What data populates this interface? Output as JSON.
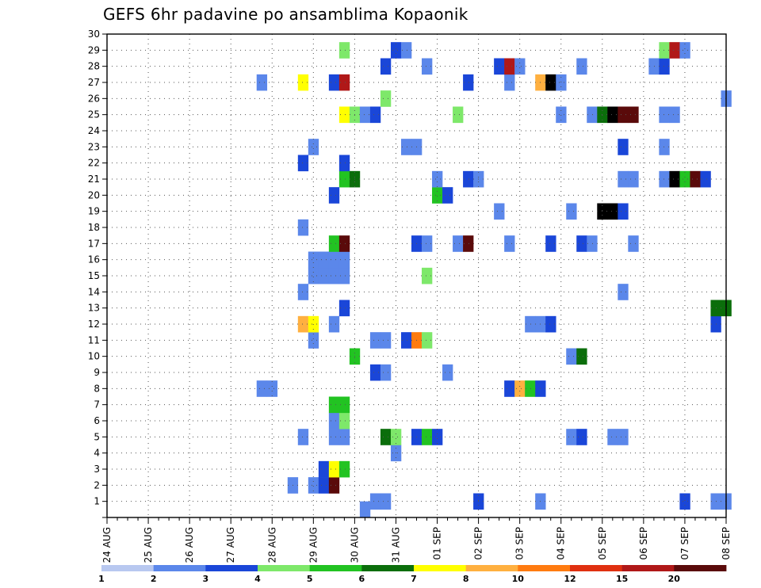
{
  "chart_data": {
    "type": "heatmap",
    "title": "GEFS 6hr padavine po ansamblima Kopaonik",
    "x_tick_labels": [
      "24 AUG",
      "25 AUG",
      "26 AUG",
      "27 AUG",
      "28 AUG",
      "29 AUG",
      "30 AUG",
      "31 AUG",
      "01 SEP",
      "02 SEP",
      "03 SEP",
      "04 SEP",
      "05 SEP",
      "06 SEP",
      "07 SEP",
      "08 SEP"
    ],
    "y_tick_labels": [
      "1",
      "2",
      "3",
      "4",
      "5",
      "6",
      "7",
      "8",
      "9",
      "10",
      "11",
      "12",
      "13",
      "14",
      "15",
      "16",
      "17",
      "18",
      "19",
      "20",
      "21",
      "22",
      "23",
      "24",
      "25",
      "26",
      "27",
      "28",
      "29",
      "30"
    ],
    "ylim": [
      0,
      30
    ],
    "x_range_steps": [
      0,
      60
    ],
    "grid": true,
    "colorbar": {
      "levels": [
        "1",
        "2",
        "3",
        "4",
        "5",
        "6",
        "7",
        "8",
        "10",
        "12",
        "15",
        "20"
      ],
      "colors": [
        "#b8c8f0",
        "#5b87ea",
        "#1a46d8",
        "#7ee86a",
        "#22c322",
        "#0b6e0b",
        "#ffff00",
        "#ffb040",
        "#ff7b10",
        "#e03010",
        "#b01818",
        "#5a0a0a"
      ]
    },
    "cells": [
      [
        26,
        1,
        1
      ],
      [
        27,
        1,
        1
      ],
      [
        36,
        1,
        2
      ],
      [
        42,
        1,
        1
      ],
      [
        56,
        1,
        2
      ],
      [
        59,
        1,
        1
      ],
      [
        60,
        1,
        1
      ],
      [
        25,
        0.5,
        1
      ],
      [
        18,
        2,
        1
      ],
      [
        20,
        2,
        1
      ],
      [
        21,
        2,
        2
      ],
      [
        22,
        2,
        11
      ],
      [
        21,
        3,
        2
      ],
      [
        22,
        3,
        6
      ],
      [
        23,
        3,
        4
      ],
      [
        28,
        4,
        1
      ],
      [
        19,
        5,
        1
      ],
      [
        22,
        5,
        1
      ],
      [
        23,
        5,
        1
      ],
      [
        27,
        5,
        5
      ],
      [
        28,
        5,
        3
      ],
      [
        30,
        5,
        2
      ],
      [
        31,
        5,
        4
      ],
      [
        32,
        5,
        2
      ],
      [
        45,
        5,
        1
      ],
      [
        46,
        5,
        2
      ],
      [
        49,
        5,
        1
      ],
      [
        50,
        5,
        1
      ],
      [
        22,
        6,
        1
      ],
      [
        23,
        6,
        3
      ],
      [
        22,
        7,
        4
      ],
      [
        23,
        7,
        4
      ],
      [
        15,
        8,
        1
      ],
      [
        16,
        8,
        1
      ],
      [
        39,
        8,
        2
      ],
      [
        40,
        8,
        7
      ],
      [
        41,
        8,
        4
      ],
      [
        42,
        8,
        2
      ],
      [
        26,
        9,
        2
      ],
      [
        27,
        9,
        1
      ],
      [
        33,
        9,
        1
      ],
      [
        24,
        10,
        4
      ],
      [
        45,
        10,
        1
      ],
      [
        46,
        10,
        5
      ],
      [
        20,
        11,
        1
      ],
      [
        26,
        11,
        1
      ],
      [
        27,
        11,
        1
      ],
      [
        29,
        11,
        2
      ],
      [
        30,
        11,
        8
      ],
      [
        31,
        11,
        3
      ],
      [
        19,
        12,
        7
      ],
      [
        20,
        12,
        6
      ],
      [
        22,
        12,
        1
      ],
      [
        41,
        12,
        1
      ],
      [
        42,
        12,
        1
      ],
      [
        43,
        12,
        2
      ],
      [
        59,
        12,
        2
      ],
      [
        23,
        13,
        2
      ],
      [
        59,
        13,
        5
      ],
      [
        60,
        13,
        5
      ],
      [
        19,
        14,
        1
      ],
      [
        50,
        14,
        1
      ],
      [
        20,
        15,
        1
      ],
      [
        21,
        15,
        1
      ],
      [
        22,
        15,
        1
      ],
      [
        23,
        15,
        1
      ],
      [
        31,
        15,
        3
      ],
      [
        20,
        16,
        1
      ],
      [
        21,
        16,
        1
      ],
      [
        22,
        16,
        1
      ],
      [
        23,
        16,
        1
      ],
      [
        22,
        17,
        4
      ],
      [
        23,
        17,
        11
      ],
      [
        30,
        17,
        2
      ],
      [
        31,
        17,
        1
      ],
      [
        34,
        17,
        1
      ],
      [
        35,
        17,
        11
      ],
      [
        39,
        17,
        1
      ],
      [
        43,
        17,
        2
      ],
      [
        46,
        17,
        2
      ],
      [
        47,
        17,
        1
      ],
      [
        51,
        17,
        1
      ],
      [
        19,
        18,
        1
      ],
      [
        38,
        19,
        1
      ],
      [
        45,
        19,
        1
      ],
      [
        48,
        19,
        14
      ],
      [
        49,
        19,
        15
      ],
      [
        50,
        19,
        2
      ],
      [
        22,
        20,
        2
      ],
      [
        32,
        20,
        4
      ],
      [
        33,
        20,
        2
      ],
      [
        23,
        21,
        4
      ],
      [
        24,
        21,
        5
      ],
      [
        32,
        21,
        1
      ],
      [
        35,
        21,
        2
      ],
      [
        36,
        21,
        1
      ],
      [
        50,
        21,
        1
      ],
      [
        51,
        21,
        1
      ],
      [
        54,
        21,
        1
      ],
      [
        55,
        21,
        13
      ],
      [
        56,
        21,
        4
      ],
      [
        57,
        21,
        11
      ],
      [
        58,
        21,
        2
      ],
      [
        19,
        22,
        2
      ],
      [
        23,
        22,
        2
      ],
      [
        20,
        23,
        1
      ],
      [
        29,
        23,
        1
      ],
      [
        30,
        23,
        1
      ],
      [
        50,
        23,
        2
      ],
      [
        54,
        23,
        1
      ],
      [
        23,
        25,
        6
      ],
      [
        24,
        25,
        3
      ],
      [
        25,
        25,
        1
      ],
      [
        26,
        25,
        2
      ],
      [
        34,
        25,
        3
      ],
      [
        44,
        25,
        1
      ],
      [
        47,
        25,
        1
      ],
      [
        48,
        25,
        5
      ],
      [
        49,
        25,
        13
      ],
      [
        50,
        25,
        11
      ],
      [
        51,
        25,
        11
      ],
      [
        54,
        25,
        1
      ],
      [
        55,
        25,
        1
      ],
      [
        27,
        26,
        3
      ],
      [
        60,
        26,
        1
      ],
      [
        15,
        27,
        1
      ],
      [
        19,
        27,
        6
      ],
      [
        22,
        27,
        2
      ],
      [
        23,
        27,
        10
      ],
      [
        35,
        27,
        2
      ],
      [
        39,
        27,
        1
      ],
      [
        42,
        27,
        7
      ],
      [
        43,
        27,
        13
      ],
      [
        44,
        27,
        1
      ],
      [
        27,
        28,
        2
      ],
      [
        31,
        28,
        1
      ],
      [
        38,
        28,
        2
      ],
      [
        39,
        28,
        10
      ],
      [
        40,
        28,
        1
      ],
      [
        46,
        28,
        1
      ],
      [
        53,
        28,
        1
      ],
      [
        54,
        28,
        2
      ],
      [
        23,
        29,
        3
      ],
      [
        28,
        29,
        2
      ],
      [
        29,
        29,
        1
      ],
      [
        54,
        29,
        3
      ],
      [
        55,
        29,
        10
      ],
      [
        56,
        29,
        1
      ]
    ]
  }
}
